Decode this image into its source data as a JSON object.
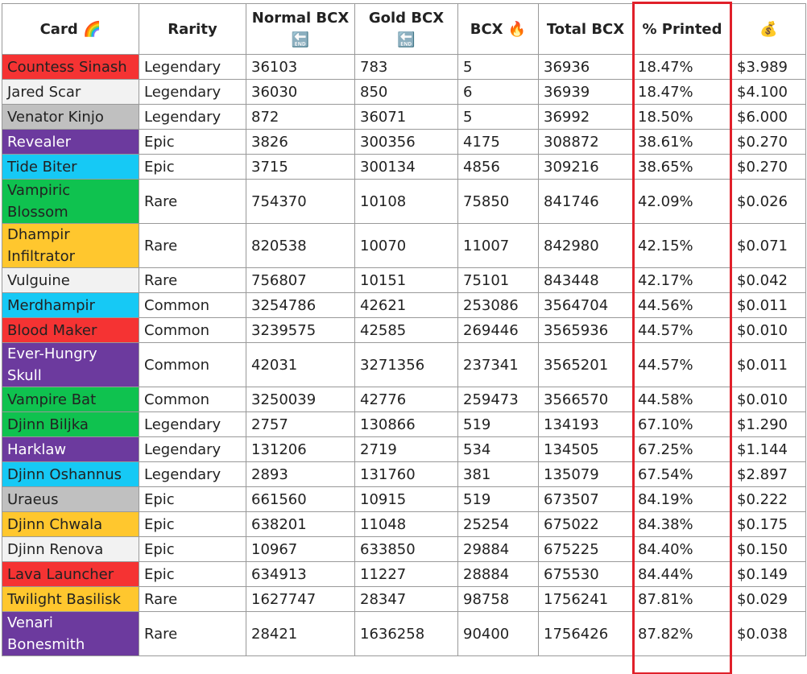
{
  "table": {
    "header": [
      "Card 🌈",
      "Rarity",
      "Normal BCX 🔚",
      "Gold BCX 🔚",
      "BCX 🔥",
      "Total BCX",
      "% Printed",
      "💰"
    ],
    "rows": [
      [
        "Countess Sinash",
        "Legendary",
        "36103",
        "783",
        "5",
        "36936",
        "18.47%",
        "$3.989"
      ],
      [
        "Jared Scar",
        "Legendary",
        "36030",
        "850",
        "6",
        "36939",
        "18.47%",
        "$4.100"
      ],
      [
        "Venator Kinjo",
        "Legendary",
        "872",
        "36071",
        "5",
        "36992",
        "18.50%",
        "$6.000"
      ],
      [
        "Revealer",
        "Epic",
        "3826",
        "300356",
        "4175",
        "308872",
        "38.61%",
        "$0.270"
      ],
      [
        "Tide Biter",
        "Epic",
        "3715",
        "300134",
        "4856",
        "309216",
        "38.65%",
        "$0.270"
      ],
      [
        "Vampiric Blossom",
        "Rare",
        "754370",
        "10108",
        "75850",
        "841746",
        "42.09%",
        "$0.026"
      ],
      [
        "Dhampir Infiltrator",
        "Rare",
        "820538",
        "10070",
        "11007",
        "842980",
        "42.15%",
        "$0.071"
      ],
      [
        "Vulguine",
        "Rare",
        "756807",
        "10151",
        "75101",
        "843448",
        "42.17%",
        "$0.042"
      ],
      [
        "Merdhampir",
        "Common",
        "3254786",
        "42621",
        "253086",
        "3564704",
        "44.56%",
        "$0.011"
      ],
      [
        "Blood Maker",
        "Common",
        "3239575",
        "42585",
        "269446",
        "3565936",
        "44.57%",
        "$0.010"
      ],
      [
        "Ever-Hungry Skull",
        "Common",
        "42031",
        "3271356",
        "237341",
        "3565201",
        "44.57%",
        "$0.011"
      ],
      [
        "Vampire Bat",
        "Common",
        "3250039",
        "42776",
        "259473",
        "3566570",
        "44.58%",
        "$0.010"
      ],
      [
        "Djinn Biljka",
        "Legendary",
        "2757",
        "130866",
        "519",
        "134193",
        "67.10%",
        "$1.290"
      ],
      [
        "Harklaw",
        "Legendary",
        "131206",
        "2719",
        "534",
        "134505",
        "67.25%",
        "$1.144"
      ],
      [
        "Djinn Oshannus",
        "Legendary",
        "2893",
        "131760",
        "381",
        "135079",
        "67.54%",
        "$2.897"
      ],
      [
        "Uraeus",
        "Epic",
        "661560",
        "10915",
        "519",
        "673507",
        "84.19%",
        "$0.222"
      ],
      [
        "Djinn Chwala",
        "Epic",
        "638201",
        "11048",
        "25254",
        "675022",
        "84.38%",
        "$0.175"
      ],
      [
        "Djinn Renova",
        "Epic",
        "10967",
        "633850",
        "29884",
        "675225",
        "84.40%",
        "$0.150"
      ],
      [
        "Lava Launcher",
        "Epic",
        "634913",
        "11227",
        "28884",
        "675530",
        "84.44%",
        "$0.149"
      ],
      [
        "Twilight Basilisk",
        "Rare",
        "1627747",
        "28347",
        "98758",
        "1756241",
        "87.81%",
        "$0.029"
      ],
      [
        "Venari Bonesmith",
        "Rare",
        "28421",
        "1636258",
        "90400",
        "1756426",
        "87.82%",
        "$0.038"
      ]
    ],
    "row_colors": [
      "#f53333",
      "#f2f2f2",
      "#c0c0c0",
      "#6c3a9e",
      "#16c9f5",
      "#0fc24f",
      "#ffc72e",
      "#f2f2f2",
      "#16c9f5",
      "#f53333",
      "#6c3a9e",
      "#0fc24f",
      "#0fc24f",
      "#6c3a9e",
      "#16c9f5",
      "#c0c0c0",
      "#ffc72e",
      "#f2f2f2",
      "#f53333",
      "#ffc72e",
      "#6c3a9e"
    ],
    "light_text_colors": [
      "#6c3a9e"
    ]
  }
}
